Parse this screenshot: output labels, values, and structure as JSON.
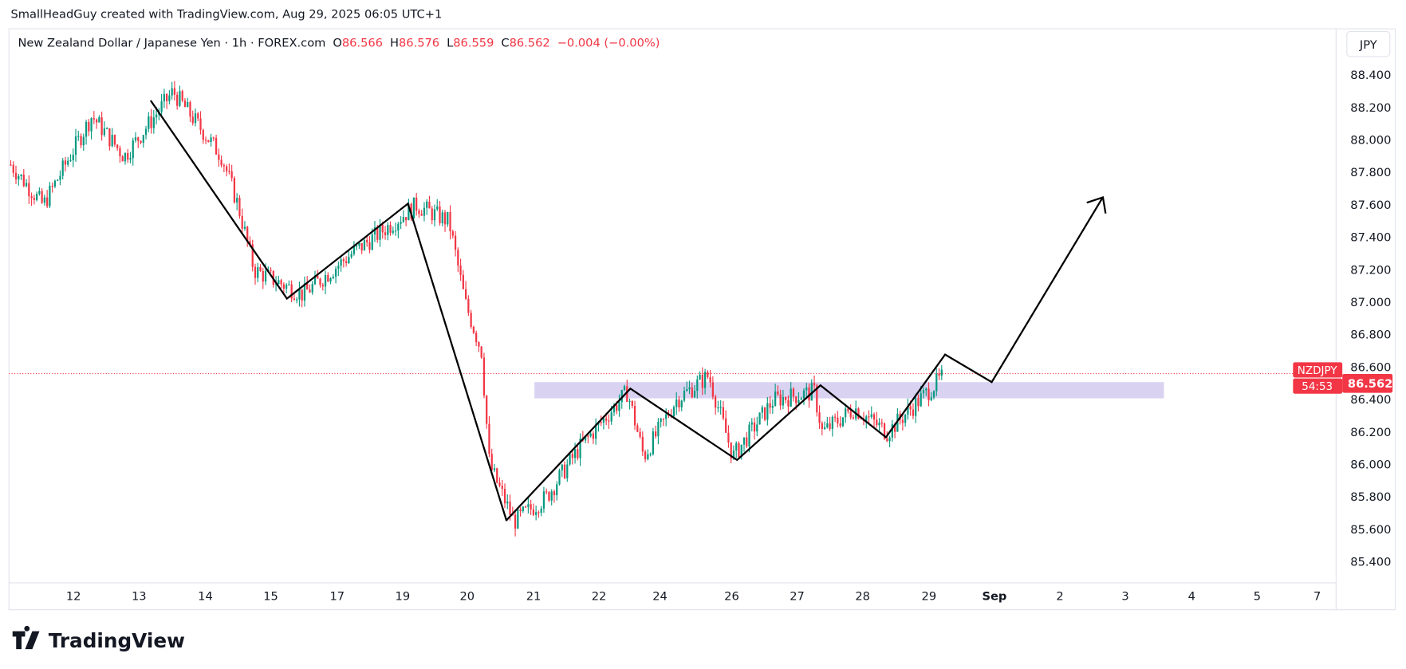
{
  "header": {
    "attribution": "SmallHeadGuy created with TradingView.com, Aug 29, 2025 06:05 UTC+1"
  },
  "legend": {
    "symbol_desc": "New Zealand Dollar / Japanese Yen · 1h · FOREX.com",
    "o_label": "O",
    "o": "86.566",
    "h_label": "H",
    "h": "86.576",
    "l_label": "L",
    "l": "86.559",
    "c_label": "C",
    "c": "86.562",
    "change": "−0.004 (−0.00%)"
  },
  "currency_button": "JPY",
  "price_tag": {
    "symbol": "NZDJPY",
    "price": "86.562",
    "countdown": "54:53"
  },
  "logo": "TradingView",
  "colors": {
    "up": "#089981",
    "down": "#f23645",
    "zone": "#d9d3f1",
    "drawing": "#000000"
  },
  "chart_data": {
    "type": "candlestick",
    "title": "NZDJPY 1h",
    "ylim": [
      85.3,
      88.5
    ],
    "y_ticks": [
      "88.400",
      "88.200",
      "88.000",
      "87.800",
      "87.600",
      "87.400",
      "87.200",
      "87.000",
      "86.800",
      "86.600",
      "86.400",
      "86.200",
      "86.000",
      "85.800",
      "85.600",
      "85.400"
    ],
    "x_ticks": [
      "12",
      "13",
      "14",
      "15",
      "17",
      "19",
      "20",
      "21",
      "22",
      "24",
      "26",
      "27",
      "28",
      "29",
      "Sep",
      "2",
      "3",
      "4",
      "5",
      "7"
    ],
    "last_price": 86.562,
    "price_path": [
      [
        0,
        87.85
      ],
      [
        2,
        87.6
      ],
      [
        5,
        88.15
      ],
      [
        7,
        87.9
      ],
      [
        10,
        88.3
      ],
      [
        13,
        87.9
      ],
      [
        14,
        87.6
      ],
      [
        15,
        87.2
      ],
      [
        18,
        87.05
      ],
      [
        21,
        87.3
      ],
      [
        25,
        87.6
      ],
      [
        27,
        87.5
      ],
      [
        28,
        87.0
      ],
      [
        29,
        86.7
      ],
      [
        29.5,
        86.0
      ],
      [
        31,
        85.65
      ],
      [
        33,
        85.8
      ],
      [
        35,
        86.1
      ],
      [
        38,
        86.45
      ],
      [
        39,
        86.05
      ],
      [
        41,
        86.4
      ],
      [
        43,
        86.55
      ],
      [
        44.5,
        86.05
      ],
      [
        47,
        86.4
      ],
      [
        49.5,
        86.45
      ],
      [
        50,
        86.2
      ],
      [
        52,
        86.35
      ],
      [
        54,
        86.2
      ],
      [
        57,
        86.5
      ],
      [
        57.6,
        86.56
      ]
    ],
    "zone": {
      "from_price": 86.41,
      "to_price": 86.51
    },
    "projection_path": [
      [
        85.66
      ],
      [
        86.47
      ],
      [
        86.03
      ],
      [
        86.49
      ],
      [
        86.17
      ],
      [
        86.68
      ],
      [
        86.51
      ],
      [
        87.65
      ]
    ]
  }
}
